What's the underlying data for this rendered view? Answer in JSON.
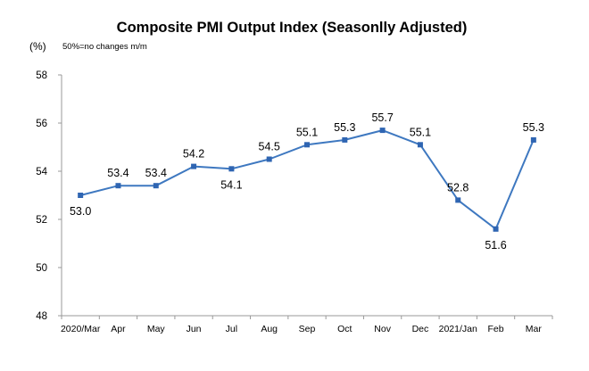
{
  "chart_data": {
    "type": "line",
    "title": "Composite PMI Output Index (Seasonlly Adjusted)",
    "unit_label": "(%)",
    "note": "50%=no changes  m/m",
    "xlabel": "",
    "ylabel": "",
    "categories": [
      "2020/Mar",
      "Apr",
      "May",
      "Jun",
      "Jul",
      "Aug",
      "Sep",
      "Oct",
      "Nov",
      "Dec",
      "2021/Jan",
      "Feb",
      "Mar"
    ],
    "series": [
      {
        "values": [
          53.0,
          53.4,
          53.4,
          54.2,
          54.1,
          54.5,
          55.1,
          55.3,
          55.7,
          55.1,
          52.8,
          51.6,
          55.3
        ]
      }
    ],
    "data_labels": [
      "53.0",
      "53.4",
      "53.4",
      "54.2",
      "54.1",
      "54.5",
      "55.1",
      "55.3",
      "55.7",
      "55.1",
      "52.8",
      "51.6",
      "55.3"
    ],
    "ylim": [
      48,
      58
    ],
    "yticks": [
      48,
      50,
      52,
      54,
      56,
      58
    ],
    "ytick_labels": [
      "48",
      "50",
      "52",
      "54",
      "56",
      "58"
    ],
    "grid": false,
    "legend": "none",
    "line_color": "#3E78C0",
    "marker_color": "#2F65B2"
  }
}
